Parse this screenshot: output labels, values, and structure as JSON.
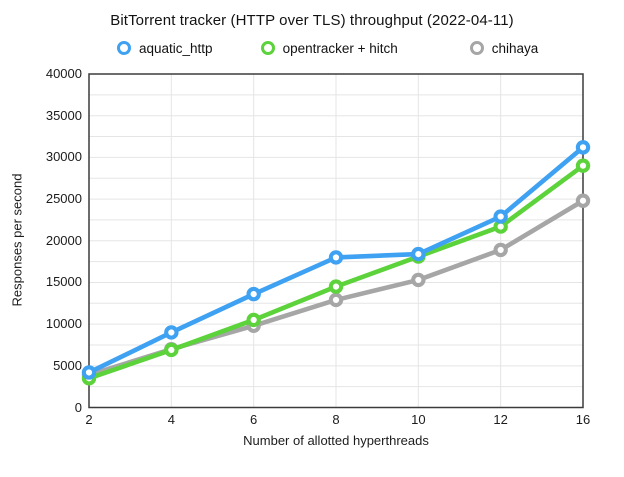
{
  "chart_data": {
    "type": "line",
    "title": "BitTorrent tracker (HTTP over TLS) throughput (2022-04-11)",
    "xlabel": "Number of allotted hyperthreads",
    "ylabel": "Responses per second",
    "categories": [
      "2",
      "4",
      "6",
      "8",
      "10",
      "12",
      "16"
    ],
    "series": [
      {
        "name": "aquatic_http",
        "color": "#3EA1F2",
        "values": [
          4200,
          9000,
          13600,
          18000,
          18400,
          22900,
          31200
        ]
      },
      {
        "name": "opentracker + hitch",
        "color": "#5CD23B",
        "values": [
          3500,
          6900,
          10500,
          14500,
          18100,
          21700,
          29000
        ]
      },
      {
        "name": "chihaya",
        "color": "#A6A6A6",
        "values": [
          3900,
          7000,
          9800,
          12900,
          15300,
          18900,
          24800
        ]
      }
    ],
    "ylim": [
      0,
      40000
    ],
    "ytick_step": 5000,
    "ytick_minor_step": 2500,
    "ytick_labels": [
      "0",
      "5000",
      "10000",
      "15000",
      "20000",
      "25000",
      "30000",
      "35000",
      "40000"
    ],
    "grid": true,
    "legend_position": "top",
    "marker": "ring",
    "colors": {
      "frame": "#3B3B3B",
      "gridline": "#E5E5E5",
      "text": "#1C1C1C"
    }
  }
}
